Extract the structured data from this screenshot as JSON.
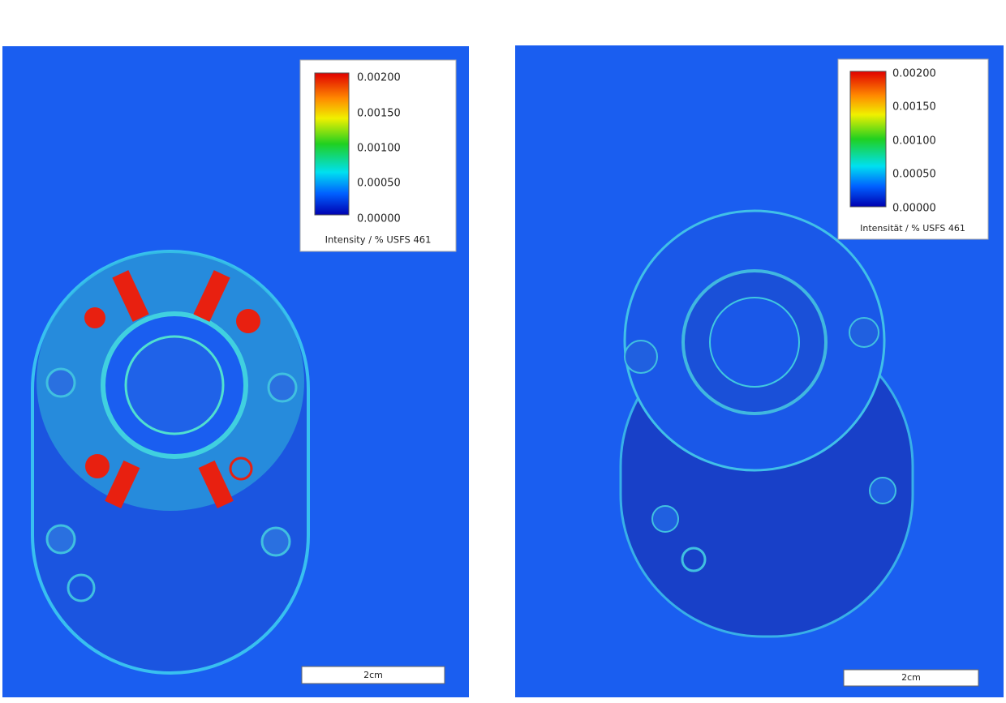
{
  "panels": [
    {
      "legend": {
        "ticks": [
          "0.00200",
          "0.00150",
          "0.00100",
          "0.00050",
          "0.00000"
        ],
        "label": "Intensity / % USFS 461"
      },
      "scalebar": "2cm"
    },
    {
      "legend": {
        "ticks": [
          "0.00200",
          "0.00150",
          "0.00100",
          "0.00050",
          "0.00000"
        ],
        "label": "Intensität / % USFS 461"
      },
      "scalebar": "2cm"
    }
  ]
}
